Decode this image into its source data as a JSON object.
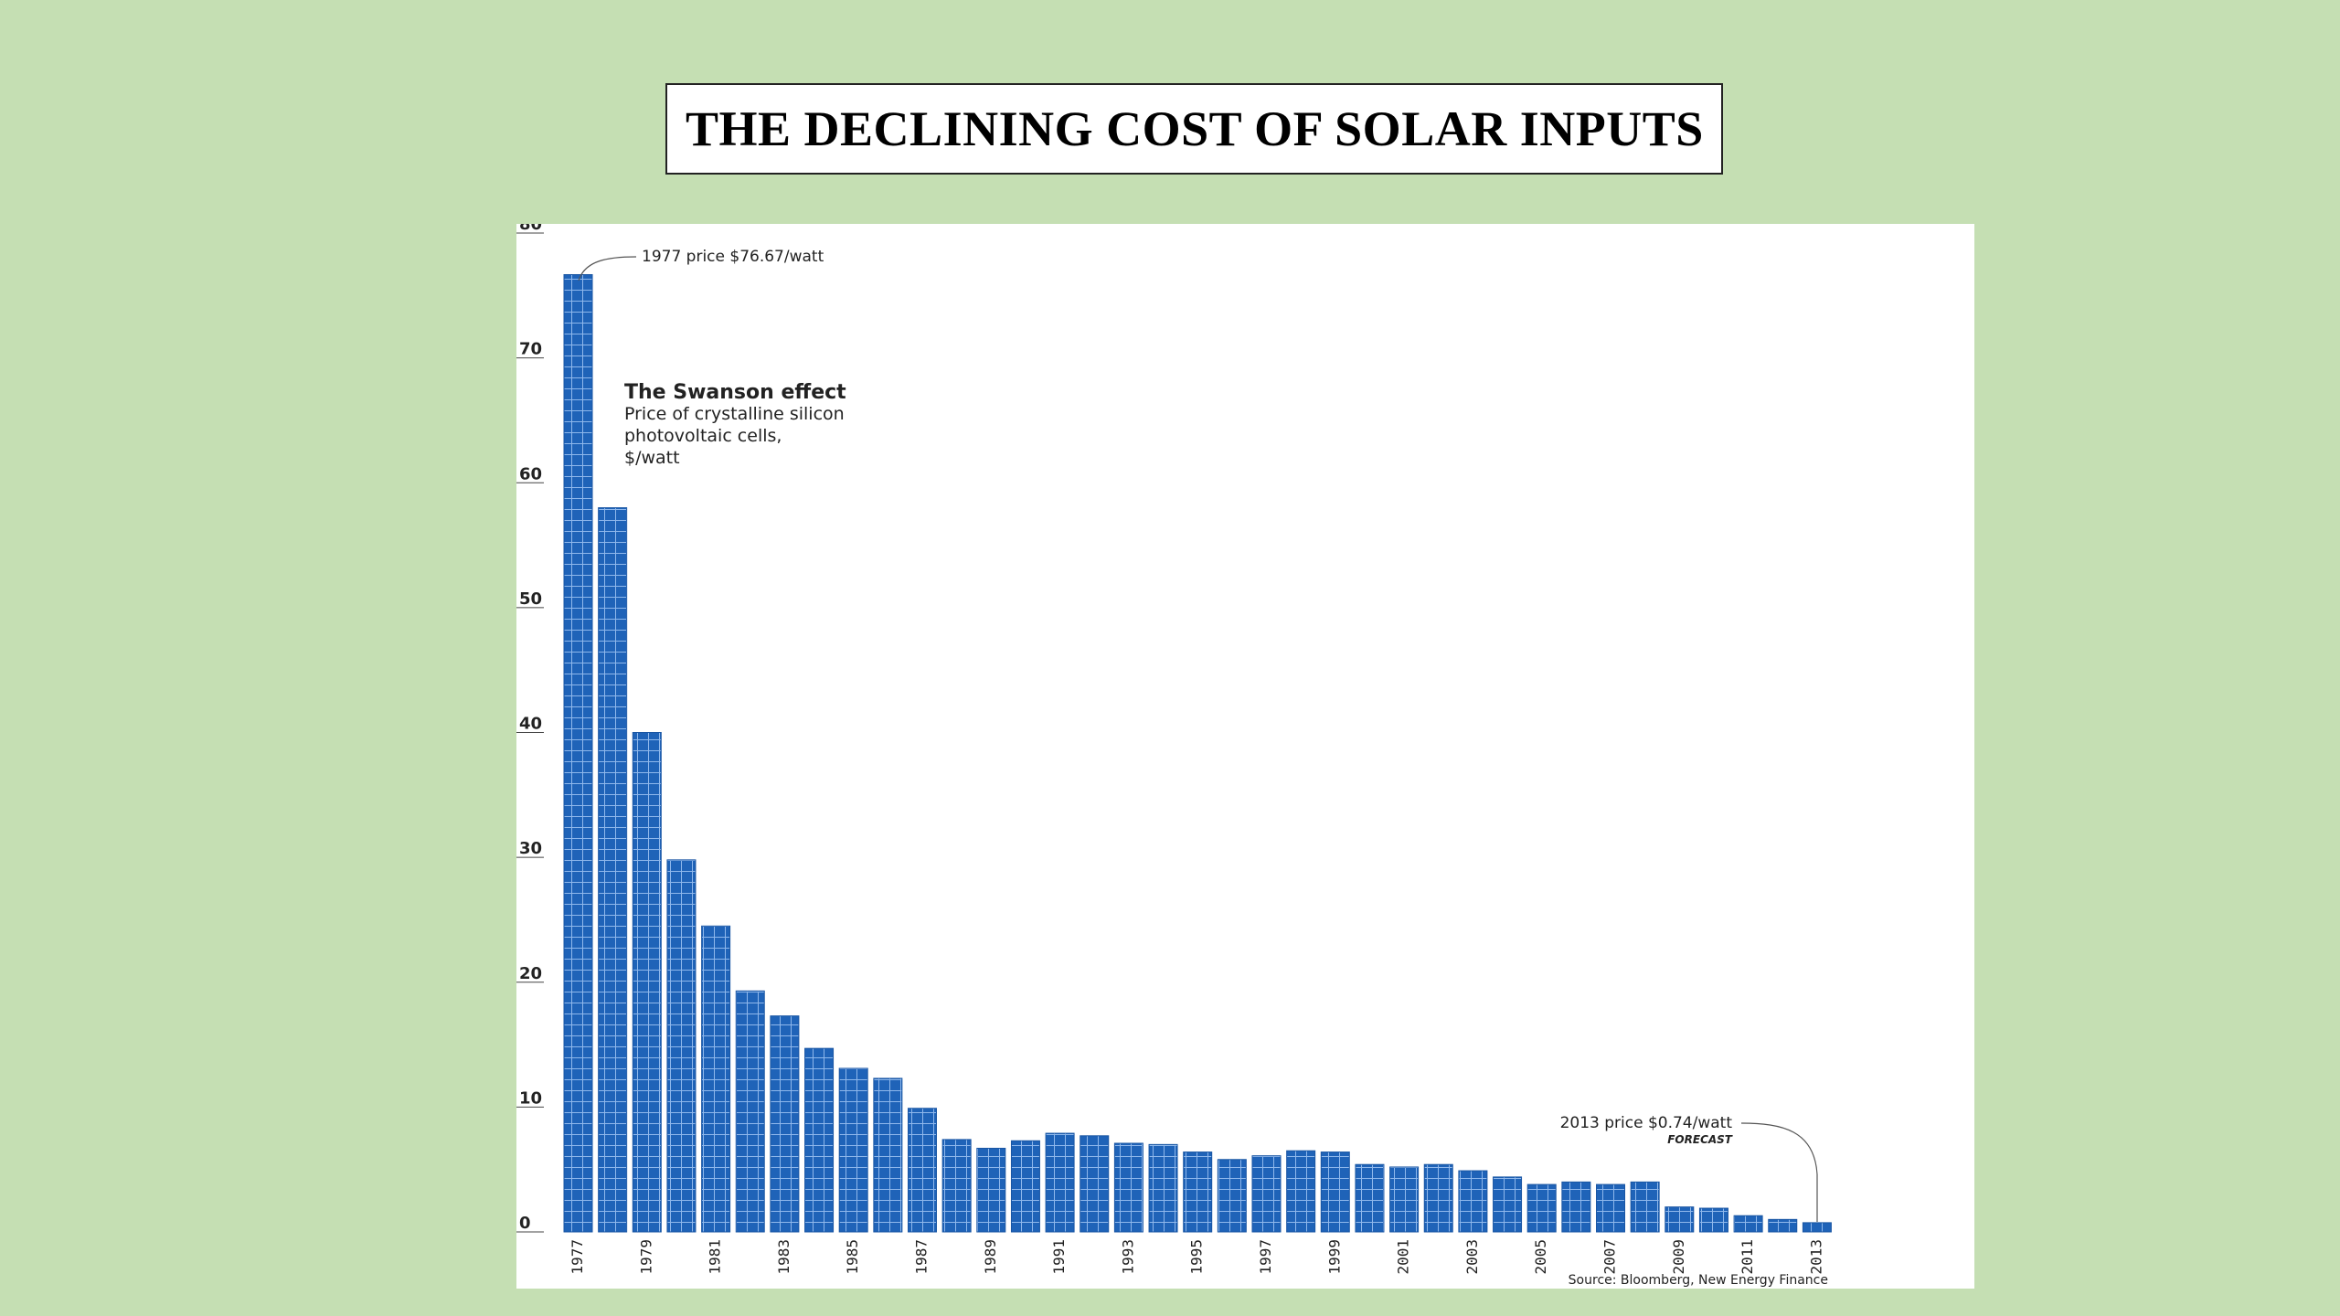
{
  "slide": {
    "title": "THE DECLINING COST OF SOLAR INPUTS"
  },
  "colors": {
    "background": "#c5dfb3",
    "bar_fill": "#1f63b8",
    "bar_grid": "#8fb8ec"
  },
  "chart_data": {
    "type": "bar",
    "title": "The Swanson effect",
    "subtitle": [
      "Price of crystalline silicon",
      "photovoltaic cells,",
      "$/watt"
    ],
    "source": "Source: Bloomberg, New Energy Finance",
    "ylim": [
      0,
      80
    ],
    "yticks": [
      0,
      10,
      20,
      30,
      40,
      50,
      60,
      70,
      80
    ],
    "grid": false,
    "categories": [
      "1977",
      "1978",
      "1979",
      "1980",
      "1981",
      "1982",
      "1983",
      "1984",
      "1985",
      "1986",
      "1987",
      "1988",
      "1989",
      "1990",
      "1991",
      "1992",
      "1993",
      "1994",
      "1995",
      "1996",
      "1997",
      "1998",
      "1999",
      "2000",
      "2001",
      "2002",
      "2003",
      "2004",
      "2005",
      "2006",
      "2007",
      "2008",
      "2009",
      "2010",
      "2011",
      "2012",
      "2013"
    ],
    "xtick_labels": [
      "1977",
      "1979",
      "1981",
      "1983",
      "1985",
      "1987",
      "1989",
      "1991",
      "1993",
      "1995",
      "1997",
      "1999",
      "2001",
      "2003",
      "2005",
      "2007",
      "2009",
      "2011",
      "2013"
    ],
    "values": [
      76.67,
      58,
      40,
      29.8,
      24.5,
      19.3,
      17.3,
      14.7,
      13.1,
      12.3,
      9.9,
      7.4,
      6.7,
      7.3,
      7.9,
      7.7,
      7.1,
      7.0,
      6.4,
      5.8,
      6.1,
      6.5,
      6.4,
      5.4,
      5.2,
      5.4,
      4.9,
      4.4,
      3.8,
      4.0,
      3.8,
      4.0,
      2.0,
      1.9,
      1.3,
      1.0,
      0.74
    ],
    "annotations": [
      {
        "text": "1977 price $76.67/watt",
        "category": "1977"
      },
      {
        "text": "2013 price $0.74/watt",
        "category": "2013",
        "note": "FORECAST"
      }
    ]
  }
}
